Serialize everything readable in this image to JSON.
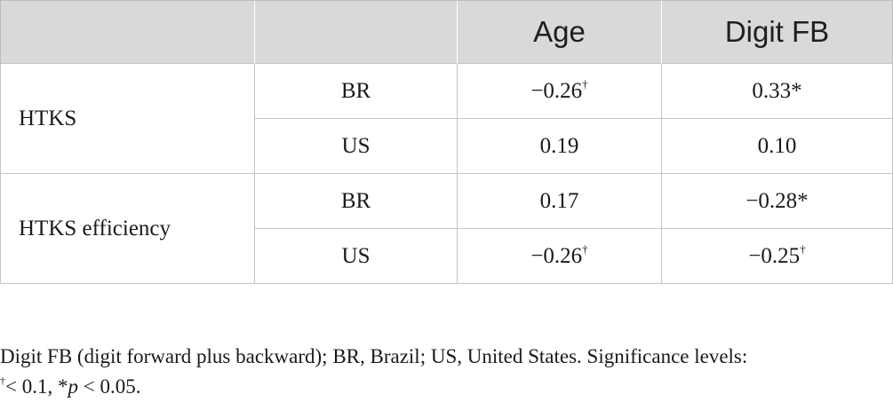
{
  "table": {
    "headers": [
      "",
      "",
      "Age",
      "Digit FB"
    ],
    "groups": [
      {
        "label": "HTKS",
        "rows": [
          {
            "country": "BR",
            "age": "−0.26",
            "age_sup": "†",
            "digit": "0.33*",
            "digit_sup": ""
          },
          {
            "country": "US",
            "age": "0.19",
            "age_sup": "",
            "digit": "0.10",
            "digit_sup": ""
          }
        ]
      },
      {
        "label": "HTKS efficiency",
        "rows": [
          {
            "country": "BR",
            "age": "0.17",
            "age_sup": "",
            "digit": "−0.28*",
            "digit_sup": ""
          },
          {
            "country": "US",
            "age": "−0.26",
            "age_sup": "†",
            "digit": "−0.25",
            "digit_sup": "†"
          }
        ]
      }
    ]
  },
  "footnote": {
    "line1": "Digit FB (digit forward plus backward); BR, Brazil; US, United States. Significance levels:",
    "dagger": "†",
    "line2_a": "< 0.1, *",
    "p_symbol": "p",
    "line2_b": " < 0.05."
  }
}
